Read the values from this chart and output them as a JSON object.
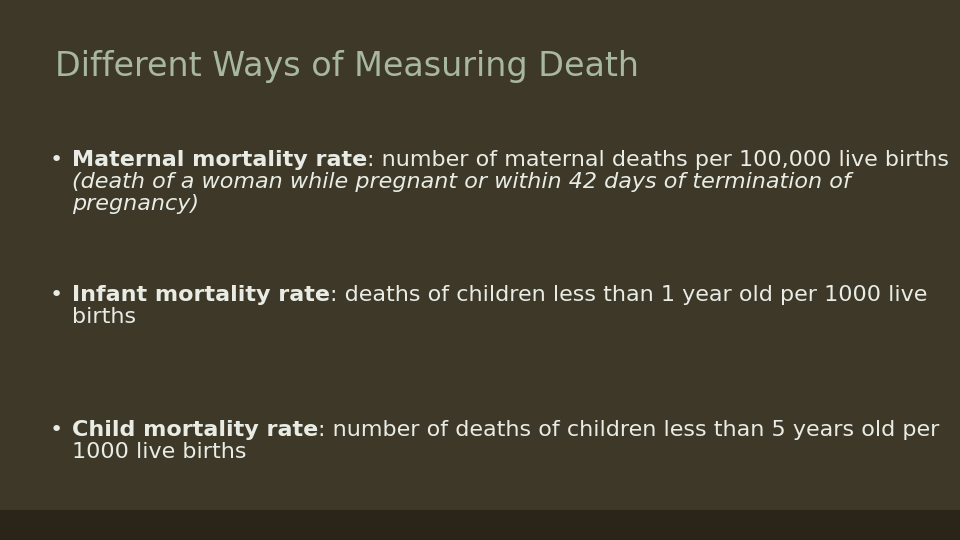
{
  "title": "Different Ways of Measuring Death",
  "title_color": "#a8b8a0",
  "title_fontsize": 24,
  "background_color": "#3d3828",
  "bottom_bar_color": "#2a2518",
  "text_color": "#e8ece4",
  "bullets": [
    {
      "bold_part": "Maternal mortality rate",
      "normal_part": ": number of maternal deaths per 100,000 live births",
      "italic_lines": [
        "(death of a woman while pregnant or within 42 days of termination of",
        "pregnancy)"
      ],
      "has_italic": true
    },
    {
      "bold_part": "Infant mortality rate",
      "normal_part": ": deaths of children less than 1 year old per 1000 live",
      "normal_line2": "births",
      "italic_lines": [],
      "has_italic": false
    },
    {
      "bold_part": "Child mortality rate",
      "normal_part": ": number of deaths of children less than 5 years old per",
      "normal_line2": "1000 live births",
      "italic_lines": [],
      "has_italic": false
    }
  ],
  "bullet_fontsize": 16,
  "figsize": [
    9.6,
    5.4
  ],
  "dpi": 100
}
